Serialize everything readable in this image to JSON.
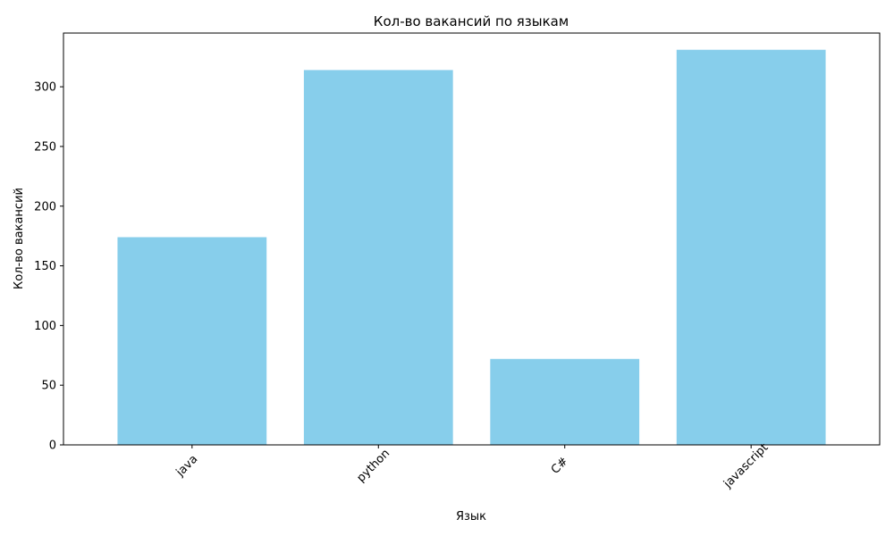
{
  "chart_data": {
    "type": "bar",
    "title": "Кол-во вакансий по языкам",
    "xlabel": "Язык",
    "ylabel": "Кол-во вакансий",
    "categories": [
      "java",
      "python",
      "C#",
      "javascript"
    ],
    "values": [
      174,
      314,
      72,
      331
    ],
    "ylim": [
      0,
      345
    ],
    "yticks": [
      0,
      50,
      100,
      150,
      200,
      250,
      300
    ],
    "grid": false,
    "bar_color": "#87ceeb",
    "x_tick_rotation_deg": 45
  }
}
